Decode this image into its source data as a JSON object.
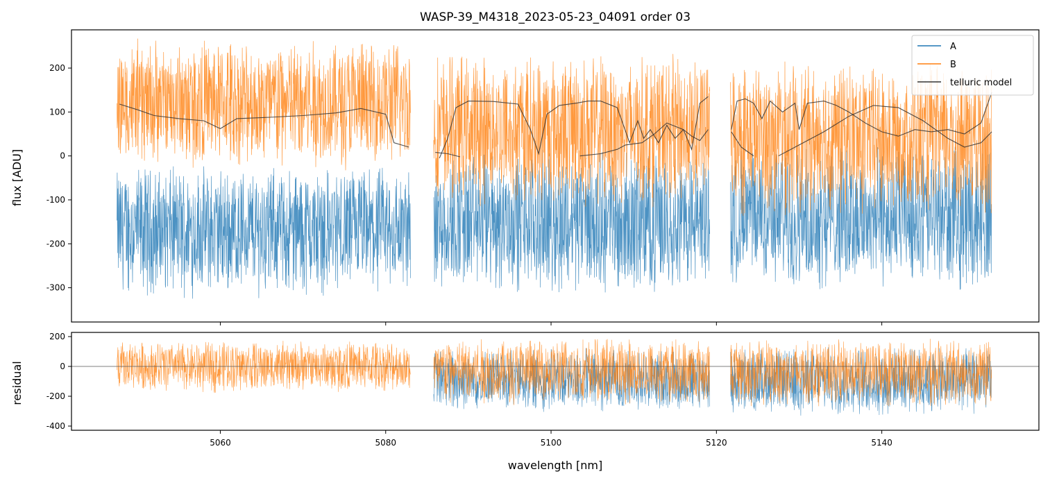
{
  "chart_data": {
    "type": "line",
    "title": "WASP-39_M4318_2023-05-23_04091  order 03",
    "xlabel": "wavelength [nm]",
    "xlim": [
      5042,
      5159
    ],
    "xticks": [
      5060,
      5080,
      5100,
      5120,
      5140
    ],
    "colors": {
      "A": "#1f77b4",
      "B": "#ff7f0e",
      "model": "#333333",
      "zero": "#555555"
    },
    "legend": {
      "placement": "top-right",
      "entries": [
        "A",
        "B",
        "telluric model"
      ]
    },
    "flux_panel": {
      "ylabel": "flux [ADU]",
      "ylim": [
        -378,
        287
      ],
      "yticks": [
        -300,
        -200,
        -100,
        0,
        100,
        200
      ],
      "series": [
        {
          "name": "A",
          "segments": [
            {
              "x0": 5047.5,
              "x1": 5083.0,
              "center": -170,
              "spread": 120,
              "upper_clip": 120
            },
            {
              "x0": 5085.8,
              "x1": 5119.2,
              "center": -150,
              "spread": 130,
              "upper_clip": 200
            },
            {
              "x0": 5121.7,
              "x1": 5153.3,
              "center": -140,
              "spread": 130,
              "upper_clip": 287
            }
          ]
        },
        {
          "name": "B",
          "segments": [
            {
              "x0": 5047.5,
              "x1": 5083.0,
              "center": 120,
              "spread": 120
            },
            {
              "x0": 5085.8,
              "x1": 5119.2,
              "center": 60,
              "spread": 140
            },
            {
              "x0": 5121.7,
              "x1": 5153.3,
              "center": 40,
              "spread": 140
            }
          ]
        }
      ],
      "telluric_model": [
        {
          "x": [
            5047.8,
            5050,
            5052,
            5055,
            5058,
            5060,
            5062,
            5066,
            5070,
            5074,
            5077,
            5080,
            5081,
            5082.8
          ],
          "y": [
            118,
            105,
            92,
            85,
            80,
            62,
            85,
            88,
            92,
            98,
            108,
            95,
            30,
            20
          ]
        },
        {
          "x": [
            5086.0,
            5087.5,
            5089.0
          ],
          "y": [
            8,
            5,
            -2
          ]
        },
        {
          "x": [
            5086.5,
            5087.5,
            5088.5,
            5090,
            5093,
            5096,
            5097.5,
            5098.5,
            5099.5,
            5101,
            5103,
            5104.5,
            5106,
            5108,
            5109.5,
            5110.5,
            5111.2,
            5112,
            5113,
            5114,
            5115,
            5116,
            5117,
            5118,
            5119
          ],
          "y": [
            -5,
            40,
            110,
            125,
            124,
            118,
            60,
            5,
            95,
            115,
            120,
            125,
            125,
            110,
            30,
            80,
            40,
            60,
            30,
            70,
            40,
            60,
            15,
            120,
            135
          ]
        },
        {
          "x": [
            5103.5,
            5106,
            5108,
            5109,
            5111,
            5112.5,
            5114,
            5116,
            5117,
            5118,
            5119
          ],
          "y": [
            0,
            5,
            15,
            25,
            30,
            50,
            75,
            60,
            45,
            35,
            60
          ]
        },
        {
          "x": [
            5121.8,
            5122.5,
            5123.5,
            5124.5,
            5125.5,
            5126.5,
            5128,
            5129.5,
            5130,
            5131,
            5133,
            5134.5,
            5136,
            5138,
            5140,
            5142,
            5144,
            5146,
            5148,
            5150,
            5152,
            5153.3
          ],
          "y": [
            60,
            125,
            130,
            120,
            85,
            125,
            100,
            120,
            60,
            120,
            125,
            115,
            100,
            75,
            55,
            45,
            60,
            55,
            60,
            50,
            75,
            145
          ]
        },
        {
          "x": [
            5121.8,
            5123,
            5124.5
          ],
          "y": [
            55,
            20,
            0
          ]
        },
        {
          "x": [
            5127.5,
            5130,
            5133,
            5136,
            5139,
            5142,
            5145,
            5148,
            5150,
            5152,
            5153.3
          ],
          "y": [
            0,
            25,
            55,
            90,
            115,
            110,
            80,
            40,
            20,
            30,
            55
          ]
        }
      ]
    },
    "residual_panel": {
      "ylabel": "residual",
      "ylim": [
        -428,
        228
      ],
      "yticks": [
        -400,
        -200,
        0,
        200
      ],
      "zero_line": 0,
      "series": [
        {
          "name": "A",
          "segments": [
            {
              "x0": 5085.8,
              "x1": 5119.2,
              "center": -90,
              "spread": 170
            },
            {
              "x0": 5121.7,
              "x1": 5153.3,
              "center": -100,
              "spread": 180
            }
          ]
        },
        {
          "name": "B",
          "segments": [
            {
              "x0": 5047.5,
              "x1": 5083.0,
              "center": 0,
              "spread": 140
            },
            {
              "x0": 5085.8,
              "x1": 5119.2,
              "center": -30,
              "spread": 180
            },
            {
              "x0": 5121.7,
              "x1": 5153.3,
              "center": -40,
              "spread": 180
            }
          ]
        }
      ]
    }
  }
}
